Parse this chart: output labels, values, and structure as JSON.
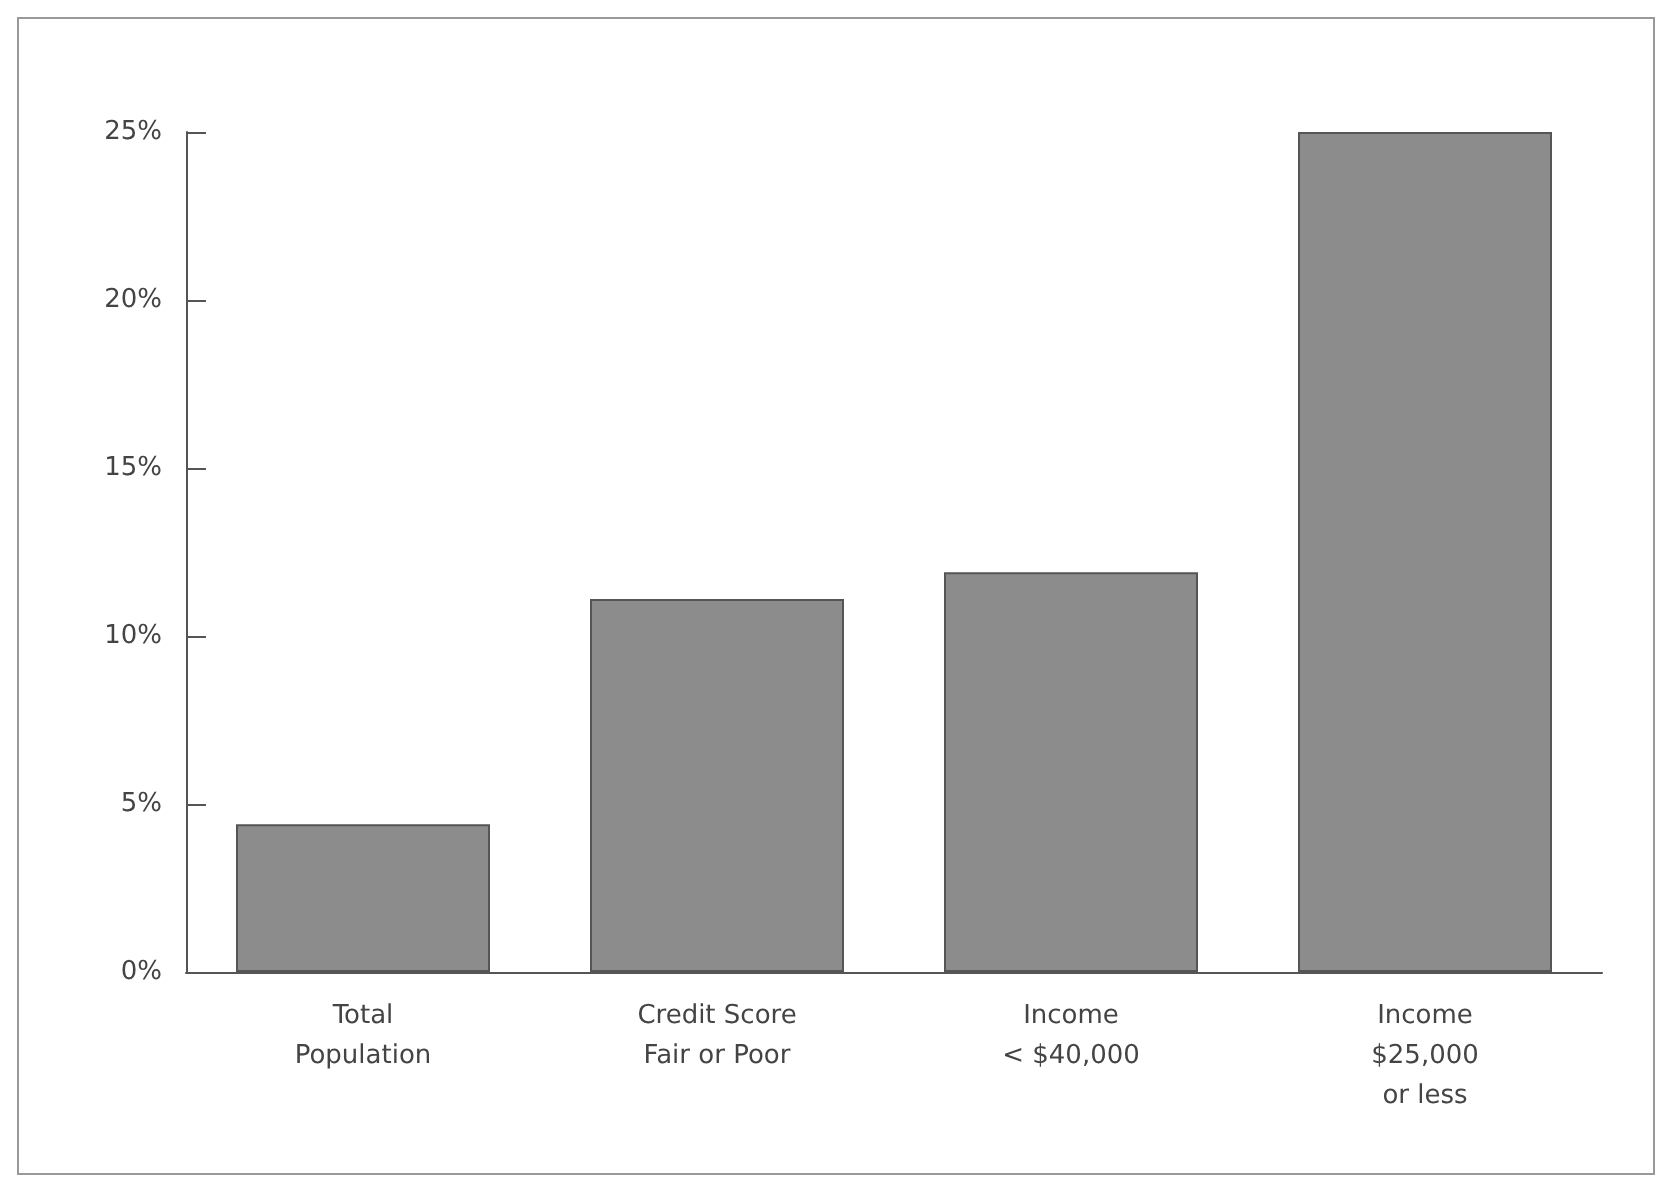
{
  "chart_data": {
    "type": "bar",
    "categories": [
      "Total\nPopulation",
      "Credit Score\nFair or Poor",
      "Income\n< $40,000",
      "Income\n$25,000\nor less"
    ],
    "values": [
      4.4,
      11.1,
      11.9,
      25
    ],
    "color": "#8c8c8c",
    "ylim": [
      0,
      25
    ],
    "yticks": [
      {
        "value": 0,
        "label": "0%"
      },
      {
        "value": 5,
        "label": "5%"
      },
      {
        "value": 10,
        "label": "10%"
      },
      {
        "value": 15,
        "label": "15%"
      },
      {
        "value": 20,
        "label": "20%"
      },
      {
        "value": 25,
        "label": "25%"
      }
    ],
    "grid": false
  }
}
